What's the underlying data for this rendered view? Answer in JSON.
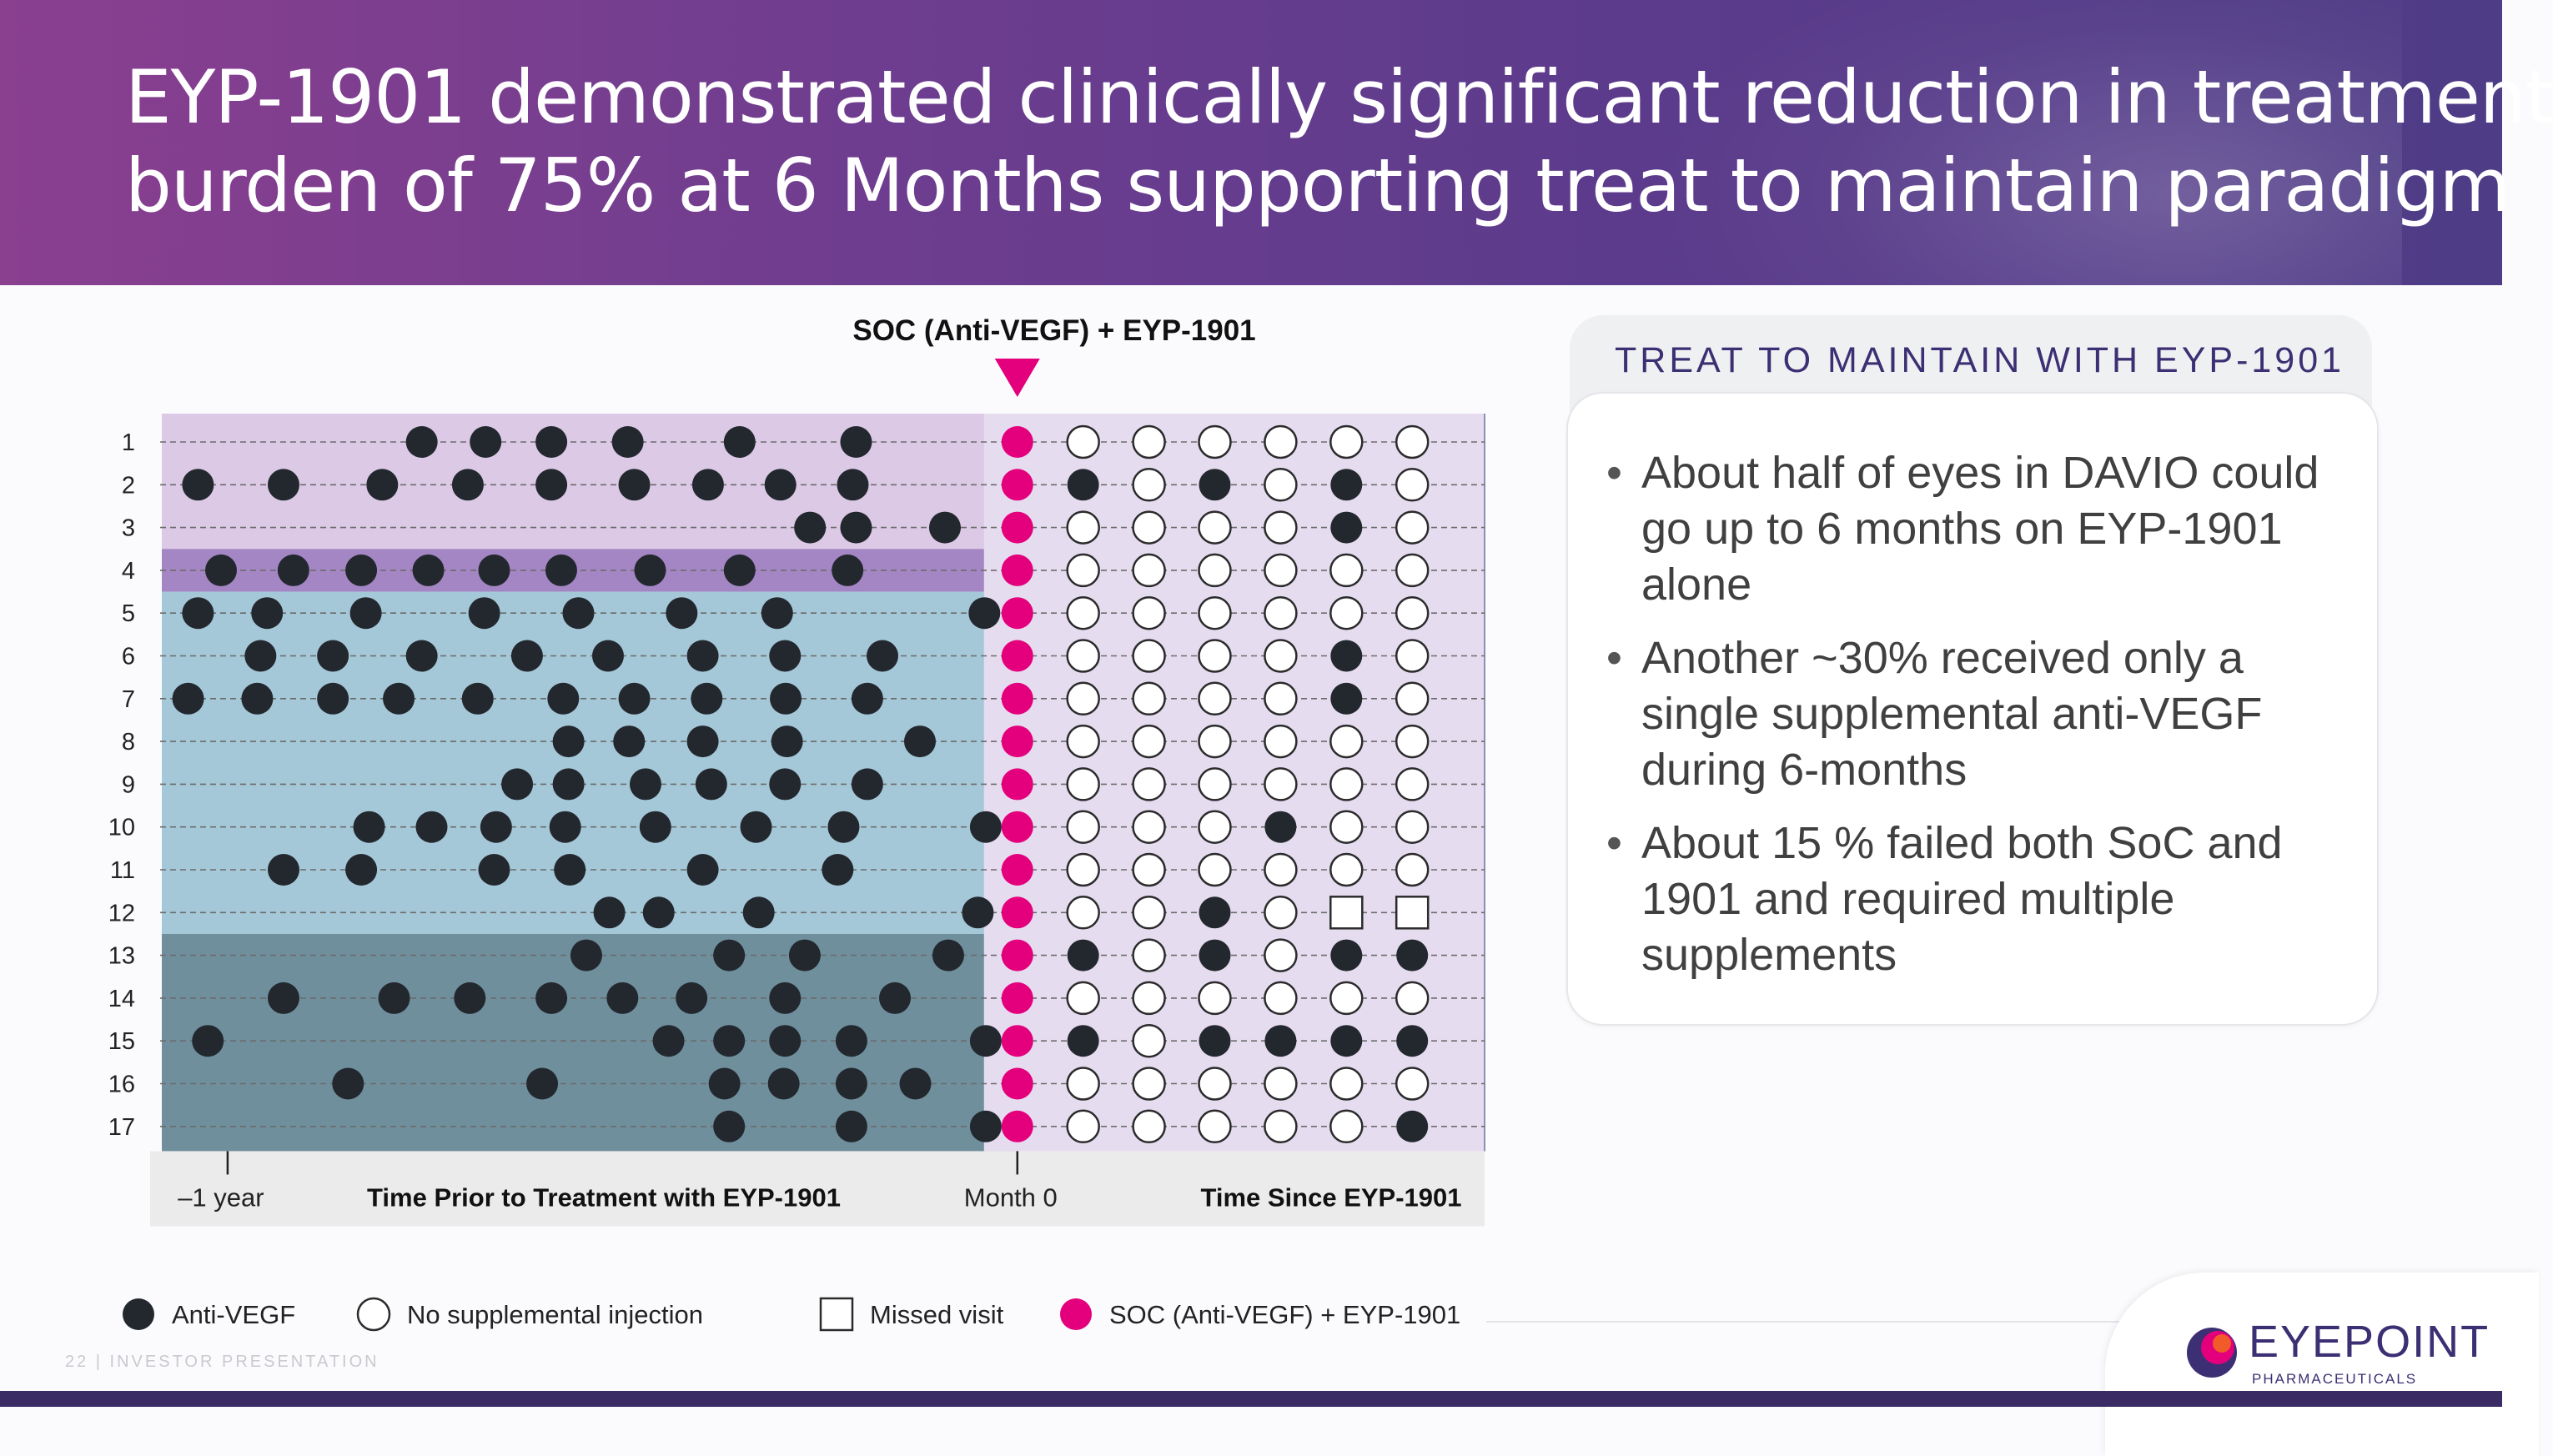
{
  "slide": {
    "title_line_1": "EYP-1901 demonstrated clinically significant reduction in treatment",
    "title_line_2": "burden of 75% at 6 Months supporting treat to maintain paradigm",
    "footer_text": "22 | INVESTOR PRESENTATION"
  },
  "panel": {
    "heading": "TREAT TO MAINTAIN WITH EYP-1901",
    "bullets": [
      "About half of eyes in DAVIO could go up to 6 months on EYP-1901 alone",
      "Another ~30% received only a single supplemental anti-VEGF during 6-months",
      "About 15 % failed both SoC and 1901 and required multiple supplements"
    ],
    "bullet_symbol": "•"
  },
  "logo": {
    "name": "EYEPOINT",
    "sub": "PHARMACEUTICALS",
    "colors": [
      "#e4007c",
      "#f15a29",
      "#3d2f73"
    ]
  },
  "chart_data": {
    "type": "scatter",
    "title": "SOC (Anti-VEGF) + EYP-1901",
    "x_axis": {
      "tick_labels": [
        "–1 year",
        "Month 0"
      ],
      "section_labels": [
        "Time Prior to Treatment with EYP-1901",
        "Time Since EYP-1901"
      ],
      "xlim_months": [
        -13,
        7.1
      ]
    },
    "y_axis": {
      "tick_labels": [
        "1",
        "2",
        "3",
        "4",
        "5",
        "6",
        "7",
        "8",
        "9",
        "10",
        "11",
        "12",
        "13",
        "14",
        "15",
        "16",
        "17"
      ]
    },
    "eye_groups": [
      {
        "rows": [
          1,
          3
        ],
        "color": "#dcc9e6"
      },
      {
        "rows": [
          4,
          4
        ],
        "color": "#a486c4"
      },
      {
        "rows": [
          5,
          12
        ],
        "color": "#a5c8d8"
      },
      {
        "rows": [
          13,
          17
        ],
        "color": "#6f8f9d"
      }
    ],
    "post_treatment_region_color": "#e6dcf0",
    "legend": [
      {
        "key": "anti_vegf",
        "label": "Anti-VEGF",
        "symbol": "filled-circle",
        "color": "#23282f"
      },
      {
        "key": "none",
        "label": "No supplemental injection",
        "symbol": "open-circle",
        "color": "#ffffff"
      },
      {
        "key": "missed",
        "label": "Missed visit",
        "symbol": "open-square",
        "color": "#ffffff"
      },
      {
        "key": "soc",
        "label": "SOC (Anti-VEGF) + EYP-1901",
        "symbol": "filled-circle",
        "color": "#e4007c"
      }
    ],
    "prior_injections_months": [
      [
        -9.05,
        -8.08,
        -7.08,
        -5.92,
        -4.22,
        -2.45
      ],
      [
        -12.45,
        -11.15,
        -9.65,
        -8.35,
        -7.08,
        -5.82,
        -4.7,
        -3.6,
        -2.5
      ],
      [
        -3.15,
        -2.45,
        -1.1
      ],
      [
        -12.1,
        -11.0,
        -9.97,
        -8.95,
        -7.95,
        -6.93,
        -5.58,
        -4.22,
        -2.58
      ],
      [
        -12.45,
        -11.4,
        -9.9,
        -8.1,
        -6.67,
        -5.1,
        -3.65,
        -0.5
      ],
      [
        -11.5,
        -10.4,
        -9.05,
        -7.45,
        -6.22,
        -4.78,
        -3.53,
        -2.05
      ],
      [
        -12.6,
        -11.55,
        -10.4,
        -9.4,
        -8.2,
        -6.9,
        -5.82,
        -4.72,
        -3.52,
        -2.28
      ],
      [
        -6.82,
        -5.9,
        -4.78,
        -3.5,
        -1.48
      ],
      [
        -7.6,
        -6.82,
        -5.65,
        -4.65,
        -3.53,
        -2.28
      ],
      [
        -9.85,
        -8.9,
        -7.92,
        -6.87,
        -5.5,
        -3.97,
        -2.64,
        -0.48
      ],
      [
        -11.15,
        -9.97,
        -7.95,
        -6.8,
        -4.78,
        -2.73
      ],
      [
        -6.2,
        -5.45,
        -3.93,
        -0.6
      ],
      [
        -6.55,
        -4.38,
        -3.23,
        -1.05
      ],
      [
        -11.15,
        -9.47,
        -8.32,
        -7.08,
        -6.0,
        -4.95,
        -3.53,
        -1.86
      ],
      [
        -12.3,
        -5.3,
        -4.38,
        -3.53,
        -2.52,
        -0.48
      ],
      [
        -10.17,
        -7.22,
        -4.45,
        -3.55,
        -2.52,
        -1.55
      ],
      [
        -4.38,
        -2.52,
        -0.48
      ]
    ],
    "post_visit_months": [
      1,
      2,
      3,
      4,
      5,
      6
    ],
    "post_visits": [
      [
        "none",
        "none",
        "none",
        "none",
        "none",
        "none"
      ],
      [
        "anti_vegf",
        "none",
        "anti_vegf",
        "none",
        "anti_vegf",
        "none"
      ],
      [
        "none",
        "none",
        "none",
        "none",
        "anti_vegf",
        "none"
      ],
      [
        "none",
        "none",
        "none",
        "none",
        "none",
        "none"
      ],
      [
        "none",
        "none",
        "none",
        "none",
        "none",
        "none"
      ],
      [
        "none",
        "none",
        "none",
        "none",
        "anti_vegf",
        "none"
      ],
      [
        "none",
        "none",
        "none",
        "none",
        "anti_vegf",
        "none"
      ],
      [
        "none",
        "none",
        "none",
        "none",
        "none",
        "none"
      ],
      [
        "none",
        "none",
        "none",
        "none",
        "none",
        "none"
      ],
      [
        "none",
        "none",
        "none",
        "anti_vegf",
        "none",
        "none"
      ],
      [
        "none",
        "none",
        "none",
        "none",
        "none",
        "none"
      ],
      [
        "none",
        "none",
        "anti_vegf",
        "none",
        "missed",
        "missed"
      ],
      [
        "anti_vegf",
        "none",
        "anti_vegf",
        "none",
        "anti_vegf",
        "anti_vegf"
      ],
      [
        "none",
        "none",
        "none",
        "none",
        "none",
        "none"
      ],
      [
        "anti_vegf",
        "none",
        "anti_vegf",
        "anti_vegf",
        "anti_vegf",
        "anti_vegf"
      ],
      [
        "none",
        "none",
        "none",
        "none",
        "none",
        "none"
      ],
      [
        "none",
        "none",
        "none",
        "none",
        "none",
        "anti_vegf"
      ]
    ]
  }
}
